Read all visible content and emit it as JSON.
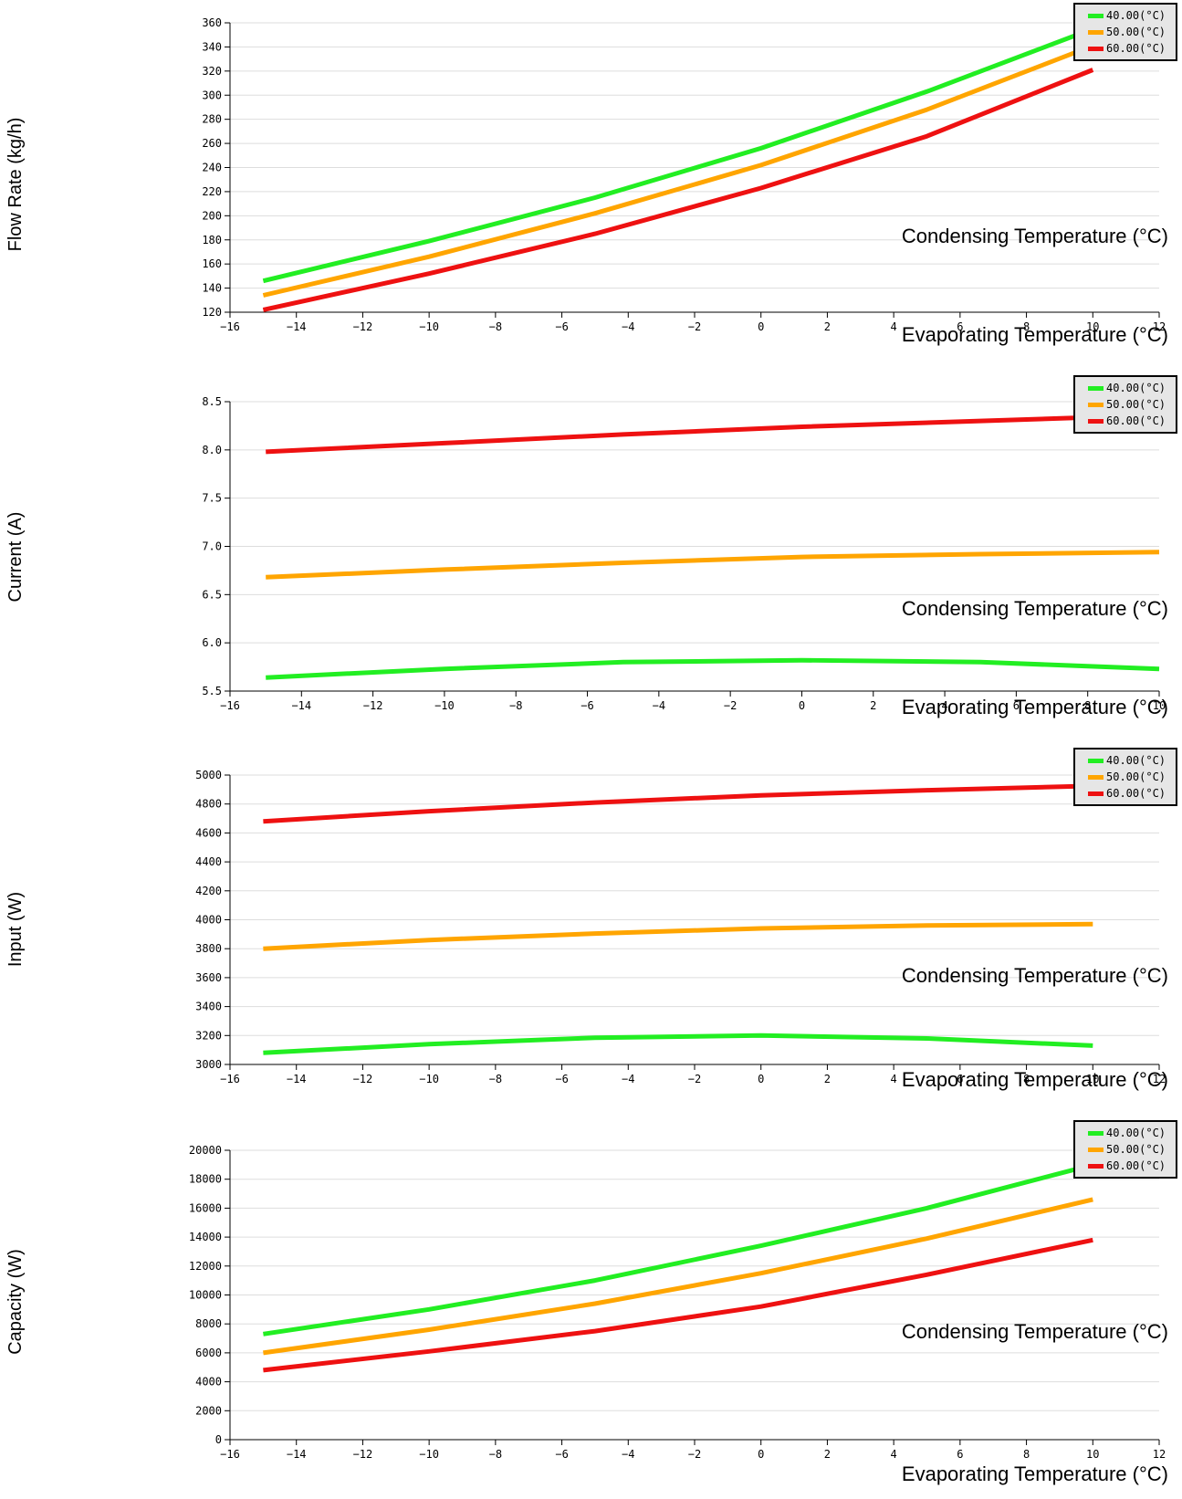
{
  "colors": {
    "c40": "#22ee22",
    "c50": "#ffa500",
    "c60": "#ee1111"
  },
  "chart_data": [
    {
      "type": "line",
      "ylabel": "Flow Rate (kg/h)",
      "xlabel": "Evaporating Temperature (°C)",
      "legend_title": "Condensing Temperature (°C)",
      "xlim": [
        -16,
        12
      ],
      "ylim": [
        120,
        360
      ],
      "xticks": [
        "-16",
        "-14",
        "-12",
        "-10",
        "-8",
        "-6",
        "-4",
        "-2",
        "0",
        "2",
        "4",
        "6",
        "8",
        "10",
        "12"
      ],
      "yticks": [
        "120",
        "140",
        "160",
        "180",
        "200",
        "220",
        "240",
        "260",
        "280",
        "300",
        "320",
        "340",
        "360"
      ],
      "x": [
        -15,
        -10,
        -5,
        0,
        5,
        10
      ],
      "series": [
        {
          "name": "40.00(°C)",
          "color": "#22ee22",
          "values": [
            146,
            179,
            215,
            256,
            303,
            355
          ]
        },
        {
          "name": "50.00(°C)",
          "color": "#ffa500",
          "values": [
            134,
            166,
            202,
            242,
            288,
            341
          ]
        },
        {
          "name": "60.00(°C)",
          "color": "#ee1111",
          "values": [
            122,
            152,
            185,
            223,
            266,
            321
          ]
        }
      ]
    },
    {
      "type": "line",
      "ylabel": "Current (A)",
      "xlabel": "Evaporating Temperature (°C)",
      "legend_title": "Condensing Temperature (°C)",
      "xlim": [
        -16,
        10
      ],
      "ylim": [
        5.5,
        8.5
      ],
      "xticks": [
        "-16",
        "-14",
        "-12",
        "-10",
        "-8",
        "-6",
        "-4",
        "-2",
        "0",
        "2",
        "4",
        "6",
        "8",
        "10"
      ],
      "yticks": [
        "5.5",
        "6.0",
        "6.5",
        "7.0",
        "7.5",
        "8.0",
        "8.5"
      ],
      "x": [
        -15,
        -10,
        -5,
        0,
        5,
        10
      ],
      "series": [
        {
          "name": "40.00(°C)",
          "color": "#22ee22",
          "values": [
            5.64,
            5.73,
            5.8,
            5.82,
            5.8,
            5.73
          ]
        },
        {
          "name": "50.00(°C)",
          "color": "#ffa500",
          "values": [
            6.68,
            6.76,
            6.83,
            6.89,
            6.92,
            6.94
          ]
        },
        {
          "name": "60.00(°C)",
          "color": "#ee1111",
          "values": [
            7.98,
            8.07,
            8.16,
            8.24,
            8.3,
            8.36
          ]
        }
      ]
    },
    {
      "type": "line",
      "ylabel": "Input (W)",
      "xlabel": "Evaporating Temperature (°C)",
      "legend_title": "Condensing Temperature (°C)",
      "xlim": [
        -16,
        12
      ],
      "ylim": [
        3000,
        5000
      ],
      "xticks": [
        "-16",
        "-14",
        "-12",
        "-10",
        "-8",
        "-6",
        "-4",
        "-2",
        "0",
        "2",
        "4",
        "6",
        "8",
        "10",
        "12"
      ],
      "yticks": [
        "3000",
        "3200",
        "3400",
        "3600",
        "3800",
        "4000",
        "4200",
        "4400",
        "4600",
        "4800",
        "5000"
      ],
      "x": [
        -15,
        -10,
        -5,
        0,
        5,
        10
      ],
      "series": [
        {
          "name": "40.00(°C)",
          "color": "#22ee22",
          "values": [
            3080,
            3140,
            3185,
            3200,
            3180,
            3130
          ]
        },
        {
          "name": "50.00(°C)",
          "color": "#ffa500",
          "values": [
            3800,
            3860,
            3905,
            3940,
            3960,
            3970
          ]
        },
        {
          "name": "60.00(°C)",
          "color": "#ee1111",
          "values": [
            4680,
            4750,
            4810,
            4860,
            4895,
            4925
          ]
        }
      ]
    },
    {
      "type": "line",
      "ylabel": "Capacity (W)",
      "xlabel": "Evaporating Temperature (°C)",
      "legend_title": "Condensing Temperature (°C)",
      "xlim": [
        -16,
        12
      ],
      "ylim": [
        0,
        20000
      ],
      "xticks": [
        "-16",
        "-14",
        "-12",
        "-10",
        "-8",
        "-6",
        "-4",
        "-2",
        "0",
        "2",
        "4",
        "6",
        "8",
        "10",
        "12"
      ],
      "yticks": [
        "0",
        "2000",
        "4000",
        "6000",
        "8000",
        "10000",
        "12000",
        "14000",
        "16000",
        "18000",
        "20000"
      ],
      "x": [
        -15,
        -10,
        -5,
        0,
        5,
        10
      ],
      "series": [
        {
          "name": "40.00(°C)",
          "color": "#22ee22",
          "values": [
            7300,
            9000,
            11000,
            13400,
            16000,
            19000
          ]
        },
        {
          "name": "50.00(°C)",
          "color": "#ffa500",
          "values": [
            6000,
            7600,
            9400,
            11500,
            13900,
            16600
          ]
        },
        {
          "name": "60.00(°C)",
          "color": "#ee1111",
          "values": [
            4800,
            6100,
            7500,
            9200,
            11400,
            13800
          ]
        }
      ]
    }
  ]
}
